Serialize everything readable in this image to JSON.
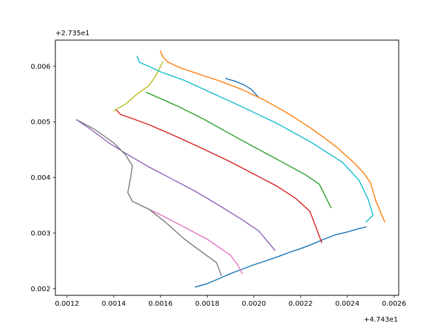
{
  "chart_data": {
    "type": "line",
    "title": "",
    "xlabel": "",
    "ylabel": "",
    "x_offset_label": "+4.743e1",
    "y_offset_label": "+2.735e1",
    "xlim": [
      0.00115,
      0.00262
    ],
    "ylim": [
      0.00188,
      0.00647
    ],
    "x_ticks": [
      {
        "value": 0.0012,
        "label": "0.0012"
      },
      {
        "value": 0.0014,
        "label": "0.0014"
      },
      {
        "value": 0.0016,
        "label": "0.0016"
      },
      {
        "value": 0.0018,
        "label": "0.0018"
      },
      {
        "value": 0.002,
        "label": "0.0020"
      },
      {
        "value": 0.0022,
        "label": "0.0022"
      },
      {
        "value": 0.0024,
        "label": "0.0024"
      },
      {
        "value": 0.0026,
        "label": "0.0026"
      }
    ],
    "y_ticks": [
      {
        "value": 0.002,
        "label": "0.002"
      },
      {
        "value": 0.003,
        "label": "0.003"
      },
      {
        "value": 0.004,
        "label": "0.004"
      },
      {
        "value": 0.005,
        "label": "0.005"
      },
      {
        "value": 0.006,
        "label": "0.006"
      }
    ],
    "grid": false,
    "series": [
      {
        "color": "#1f77b4",
        "points": [
          [
            0.00175,
            0.00203
          ],
          [
            0.0018,
            0.00209
          ],
          [
            0.00185,
            0.00218
          ],
          [
            0.0019,
            0.00227
          ],
          [
            0.00195,
            0.00235
          ],
          [
            0.002,
            0.00243
          ],
          [
            0.00205,
            0.0025
          ],
          [
            0.0021,
            0.00257
          ],
          [
            0.00215,
            0.00265
          ],
          [
            0.0022,
            0.00272
          ],
          [
            0.00225,
            0.0028
          ],
          [
            0.0023,
            0.00289
          ],
          [
            0.00235,
            0.00297
          ],
          [
            0.0024,
            0.00302
          ],
          [
            0.00245,
            0.00308
          ],
          [
            0.00248,
            0.00311
          ]
        ]
      },
      {
        "color": "#1f77b4",
        "points": [
          [
            0.00188,
            0.00578
          ],
          [
            0.00192,
            0.00573
          ],
          [
            0.00196,
            0.00566
          ],
          [
            0.00199,
            0.00558
          ],
          [
            0.00202,
            0.00544
          ]
        ]
      },
      {
        "color": "#ff7f0e",
        "points": [
          [
            0.0016,
            0.00627
          ],
          [
            0.00161,
            0.00617
          ],
          [
            0.00163,
            0.00608
          ],
          [
            0.00168,
            0.00598
          ],
          [
            0.00175,
            0.00588
          ],
          [
            0.00185,
            0.00574
          ],
          [
            0.00195,
            0.00558
          ],
          [
            0.00205,
            0.00538
          ],
          [
            0.00215,
            0.00514
          ],
          [
            0.00225,
            0.00487
          ],
          [
            0.00235,
            0.00456
          ],
          [
            0.00243,
            0.00426
          ],
          [
            0.00247,
            0.00408
          ],
          [
            0.0025,
            0.0039
          ],
          [
            0.00252,
            0.0036
          ],
          [
            0.00254,
            0.0034
          ],
          [
            0.00256,
            0.0032
          ]
        ]
      },
      {
        "color": "#2ca02c",
        "points": [
          [
            0.00154,
            0.00553
          ],
          [
            0.0016,
            0.00542
          ],
          [
            0.00168,
            0.00527
          ],
          [
            0.00178,
            0.00506
          ],
          [
            0.0019,
            0.00478
          ],
          [
            0.002,
            0.00455
          ],
          [
            0.00212,
            0.00428
          ],
          [
            0.00222,
            0.00405
          ],
          [
            0.00228,
            0.00388
          ],
          [
            0.00233,
            0.00346
          ]
        ]
      },
      {
        "color": "#d62728",
        "points": [
          [
            0.00141,
            0.00522
          ],
          [
            0.00143,
            0.00513
          ],
          [
            0.00148,
            0.00506
          ],
          [
            0.00155,
            0.00495
          ],
          [
            0.00165,
            0.00477
          ],
          [
            0.00178,
            0.00452
          ],
          [
            0.0019,
            0.00428
          ],
          [
            0.002,
            0.00406
          ],
          [
            0.0021,
            0.00384
          ],
          [
            0.00218,
            0.00362
          ],
          [
            0.00224,
            0.00339
          ],
          [
            0.00229,
            0.00283
          ]
        ]
      },
      {
        "color": "#9467bd",
        "points": [
          [
            0.00124,
            0.00504
          ],
          [
            0.0013,
            0.00487
          ],
          [
            0.00138,
            0.00462
          ],
          [
            0.00146,
            0.00441
          ],
          [
            0.00155,
            0.00419
          ],
          [
            0.00165,
            0.00397
          ],
          [
            0.00175,
            0.00375
          ],
          [
            0.00185,
            0.0035
          ],
          [
            0.00195,
            0.00324
          ],
          [
            0.00202,
            0.00304
          ],
          [
            0.00209,
            0.00269
          ]
        ]
      },
      {
        "color": "#e377c2",
        "points": [
          [
            0.0015,
            0.00353
          ],
          [
            0.0016,
            0.00333
          ],
          [
            0.0017,
            0.00311
          ],
          [
            0.0018,
            0.00289
          ],
          [
            0.0019,
            0.0026
          ],
          [
            0.00193,
            0.00243
          ],
          [
            0.00195,
            0.00227
          ]
        ]
      },
      {
        "color": "#7f7f7f",
        "points": [
          [
            0.00125,
            0.00502
          ],
          [
            0.00132,
            0.00486
          ],
          [
            0.0014,
            0.00462
          ],
          [
            0.00145,
            0.00441
          ],
          [
            0.00148,
            0.00421
          ],
          [
            0.00147,
            0.00395
          ],
          [
            0.00146,
            0.00373
          ],
          [
            0.00148,
            0.00357
          ],
          [
            0.00155,
            0.00343
          ],
          [
            0.00162,
            0.0032
          ],
          [
            0.0017,
            0.0029
          ],
          [
            0.00178,
            0.00265
          ],
          [
            0.00184,
            0.00247
          ],
          [
            0.00186,
            0.00224
          ]
        ]
      },
      {
        "color": "#bcbd22",
        "points": [
          [
            0.0014,
            0.0052
          ],
          [
            0.00145,
            0.00532
          ],
          [
            0.0015,
            0.0055
          ],
          [
            0.00155,
            0.00565
          ],
          [
            0.00158,
            0.00583
          ],
          [
            0.00161,
            0.00608
          ]
        ]
      },
      {
        "color": "#17becf",
        "points": [
          [
            0.0015,
            0.00618
          ],
          [
            0.00151,
            0.00607
          ],
          [
            0.00155,
            0.006
          ],
          [
            0.0016,
            0.0059
          ],
          [
            0.0017,
            0.00575
          ],
          [
            0.00182,
            0.00552
          ],
          [
            0.00195,
            0.00527
          ],
          [
            0.0021,
            0.00497
          ],
          [
            0.00225,
            0.00462
          ],
          [
            0.00238,
            0.00427
          ],
          [
            0.00245,
            0.00395
          ],
          [
            0.00249,
            0.0036
          ],
          [
            0.00251,
            0.00332
          ],
          [
            0.00248,
            0.0032
          ]
        ]
      }
    ]
  }
}
